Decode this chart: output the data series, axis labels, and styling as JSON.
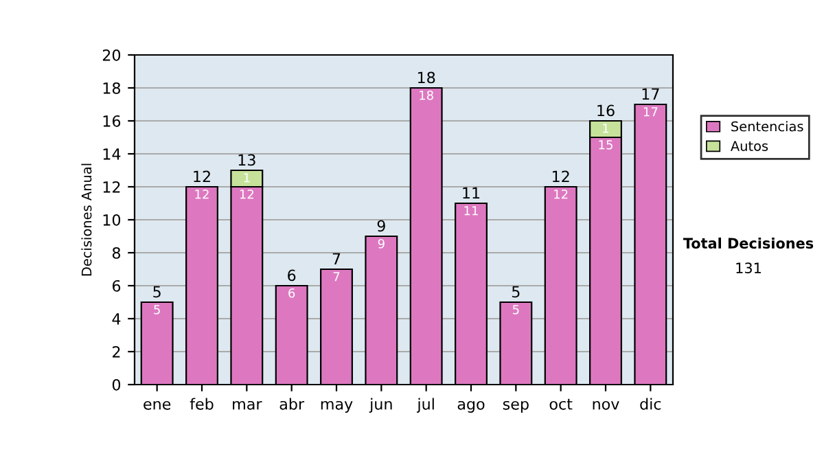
{
  "chart_data": {
    "type": "bar",
    "stacked": true,
    "ylabel": "Decisiones Anual",
    "categories": [
      "ene",
      "feb",
      "mar",
      "abr",
      "may",
      "jun",
      "jul",
      "ago",
      "sep",
      "oct",
      "nov",
      "dic"
    ],
    "series": [
      {
        "name": "Sentencias",
        "color": "#dd78c0",
        "values": [
          5,
          12,
          12,
          6,
          7,
          9,
          18,
          11,
          5,
          12,
          15,
          17
        ]
      },
      {
        "name": "Autos",
        "color": "#c6e29a",
        "values": [
          null,
          null,
          1,
          null,
          null,
          null,
          null,
          null,
          null,
          null,
          1,
          null
        ]
      }
    ],
    "totals": [
      "5",
      "12",
      "13",
      "6",
      "7",
      "9",
      "18",
      "11",
      "5",
      "12",
      "16",
      "17"
    ],
    "data_labels": true,
    "ylim": [
      0,
      20
    ],
    "yticks": [
      0,
      2,
      4,
      6,
      8,
      10,
      12,
      14,
      16,
      18,
      20
    ],
    "grid": "y",
    "legend": "right",
    "annotations": [
      "Total Decisiones",
      "131"
    ]
  }
}
